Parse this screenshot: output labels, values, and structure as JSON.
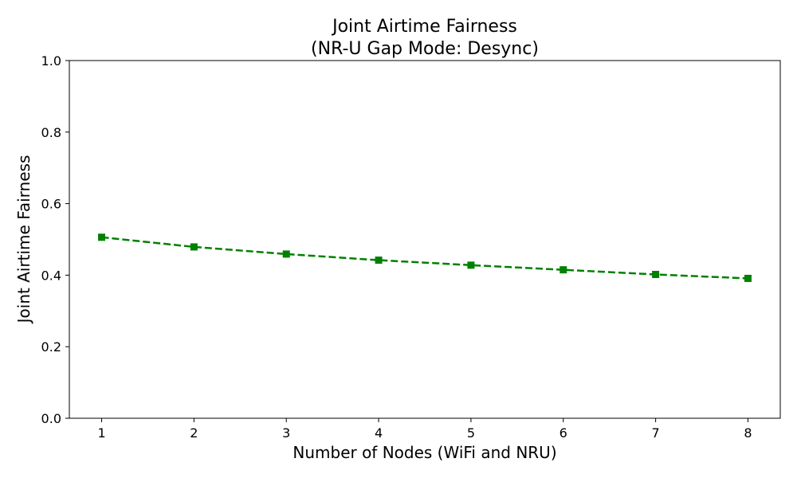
{
  "chart_data": {
    "type": "line",
    "title": "Joint Airtime Fairness",
    "subtitle": "(NR-U Gap Mode: Desync)",
    "xlabel": "Number of Nodes (WiFi and NRU)",
    "ylabel": "Joint Airtime Fairness",
    "xlim": [
      0.65,
      8.35
    ],
    "ylim": [
      0.0,
      1.0
    ],
    "x_ticks": [
      1,
      2,
      3,
      4,
      5,
      6,
      7,
      8
    ],
    "y_ticks": [
      0.0,
      0.2,
      0.4,
      0.6,
      0.8,
      1.0
    ],
    "y_tick_labels": [
      "0.0",
      "0.2",
      "0.4",
      "0.6",
      "0.8",
      "1.0"
    ],
    "grid": false,
    "legend": "none",
    "series": [
      {
        "x": [
          1,
          2,
          3,
          4,
          5,
          6,
          7,
          8
        ],
        "y": [
          0.506,
          0.479,
          0.459,
          0.442,
          0.428,
          0.415,
          0.402,
          0.391
        ],
        "color": "#008000",
        "line_style": "dashed",
        "marker": "square"
      }
    ]
  }
}
